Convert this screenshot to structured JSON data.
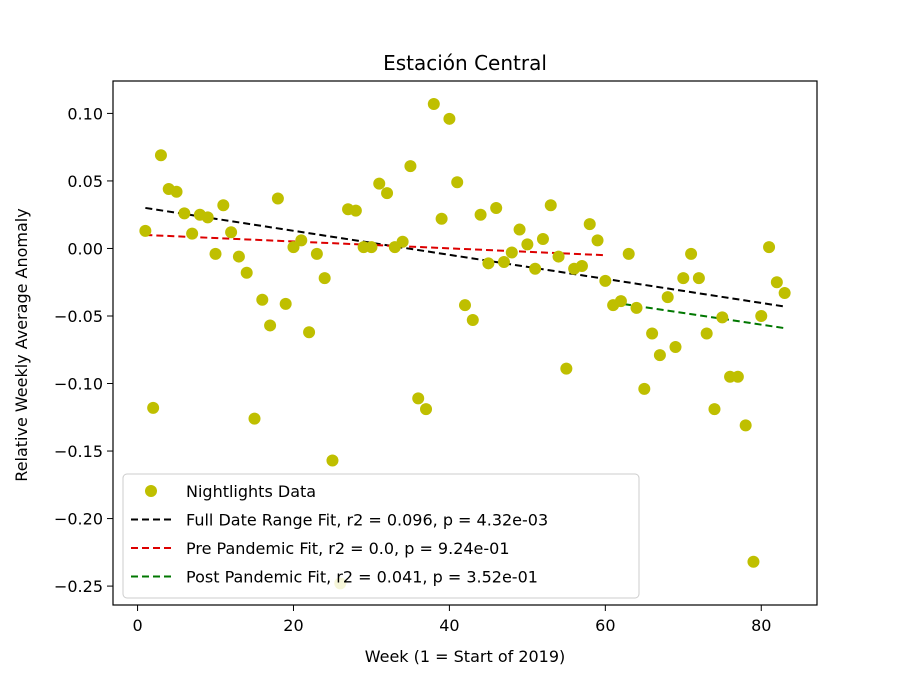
{
  "chart_data": {
    "type": "scatter",
    "title": "Estación Central",
    "xlabel": "Week (1 = Start of 2019)",
    "ylabel": "Relative Weekly Average Anomaly",
    "xlim": [
      -3.15,
      87.15
    ],
    "ylim": [
      -0.264,
      0.124
    ],
    "x_ticks": [
      0,
      20,
      40,
      60,
      80
    ],
    "y_ticks": [
      -0.25,
      -0.2,
      -0.15,
      -0.1,
      -0.05,
      0.0,
      0.05,
      0.1
    ],
    "y_tick_labels": [
      "−0.25",
      "−0.20",
      "−0.15",
      "−0.10",
      "−0.05",
      "0.00",
      "0.05",
      "0.10"
    ],
    "grid": false,
    "legend_position": "lower-left",
    "series": [
      {
        "name": "Nightlights Data",
        "kind": "points",
        "color": "#bfbf00",
        "points": [
          [
            1,
            0.013
          ],
          [
            2,
            -0.118
          ],
          [
            3,
            0.069
          ],
          [
            4,
            0.044
          ],
          [
            5,
            0.042
          ],
          [
            6,
            0.026
          ],
          [
            7,
            0.011
          ],
          [
            8,
            0.025
          ],
          [
            9,
            0.023
          ],
          [
            10,
            -0.004
          ],
          [
            11,
            0.032
          ],
          [
            12,
            0.012
          ],
          [
            13,
            -0.006
          ],
          [
            14,
            -0.018
          ],
          [
            15,
            -0.126
          ],
          [
            16,
            -0.038
          ],
          [
            17,
            -0.057
          ],
          [
            18,
            0.037
          ],
          [
            19,
            -0.041
          ],
          [
            20,
            0.001
          ],
          [
            21,
            0.006
          ],
          [
            22,
            -0.062
          ],
          [
            23,
            -0.004
          ],
          [
            24,
            -0.022
          ],
          [
            25,
            -0.157
          ],
          [
            26,
            -0.248
          ],
          [
            27,
            0.029
          ],
          [
            28,
            0.028
          ],
          [
            29,
            0.001
          ],
          [
            30,
            0.001
          ],
          [
            31,
            0.048
          ],
          [
            32,
            0.041
          ],
          [
            33,
            0.001
          ],
          [
            34,
            0.005
          ],
          [
            35,
            0.061
          ],
          [
            36,
            -0.111
          ],
          [
            37,
            -0.119
          ],
          [
            38,
            0.107
          ],
          [
            39,
            0.022
          ],
          [
            40,
            0.096
          ],
          [
            41,
            0.049
          ],
          [
            42,
            -0.042
          ],
          [
            43,
            -0.053
          ],
          [
            44,
            0.025
          ],
          [
            45,
            -0.011
          ],
          [
            46,
            0.03
          ],
          [
            47,
            -0.01
          ],
          [
            48,
            -0.003
          ],
          [
            49,
            0.014
          ],
          [
            50,
            0.003
          ],
          [
            51,
            -0.015
          ],
          [
            52,
            0.007
          ],
          [
            53,
            0.032
          ],
          [
            54,
            -0.006
          ],
          [
            55,
            -0.089
          ],
          [
            56,
            -0.015
          ],
          [
            57,
            -0.013
          ],
          [
            58,
            0.018
          ],
          [
            59,
            0.006
          ],
          [
            60,
            -0.024
          ],
          [
            61,
            -0.042
          ],
          [
            62,
            -0.039
          ],
          [
            63,
            -0.004
          ],
          [
            64,
            -0.044
          ],
          [
            65,
            -0.104
          ],
          [
            66,
            -0.063
          ],
          [
            67,
            -0.079
          ],
          [
            68,
            -0.036
          ],
          [
            69,
            -0.073
          ],
          [
            70,
            -0.022
          ],
          [
            71,
            -0.004
          ],
          [
            72,
            -0.022
          ],
          [
            73,
            -0.063
          ],
          [
            74,
            -0.119
          ],
          [
            75,
            -0.051
          ],
          [
            76,
            -0.095
          ],
          [
            77,
            -0.095
          ],
          [
            78,
            -0.131
          ],
          [
            79,
            -0.232
          ],
          [
            80,
            -0.05
          ],
          [
            81,
            0.001
          ],
          [
            82,
            -0.025
          ],
          [
            83,
            -0.033
          ]
        ]
      },
      {
        "name": "Full Date Range Fit, r2 = 0.096, p = 4.32e-03",
        "kind": "line",
        "color": "#000000",
        "points": [
          [
            1,
            0.03
          ],
          [
            83,
            -0.043
          ]
        ]
      },
      {
        "name": "Pre Pandemic Fit, r2 = 0.0, p = 9.24e-01",
        "kind": "line",
        "color": "#dd0000",
        "points": [
          [
            1,
            0.01
          ],
          [
            60,
            -0.005
          ]
        ]
      },
      {
        "name": "Post Pandemic Fit, r2 = 0.041, p = 3.52e-01",
        "kind": "line",
        "color": "#007700",
        "points": [
          [
            61,
            -0.04
          ],
          [
            83,
            -0.059
          ]
        ]
      }
    ]
  }
}
